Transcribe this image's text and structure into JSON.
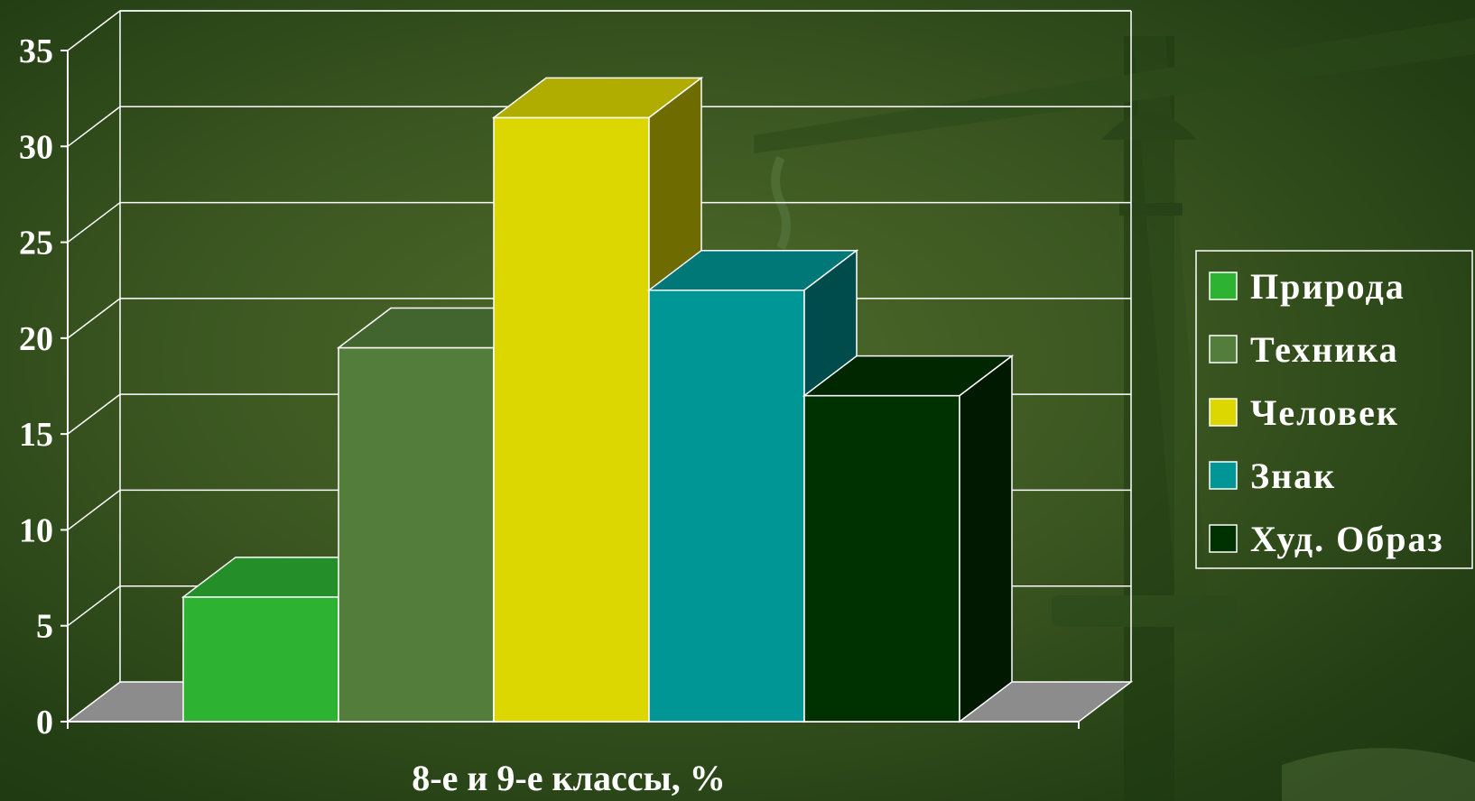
{
  "chart_data": {
    "type": "bar",
    "style": "3d",
    "categories": [
      "Природа",
      "Техника",
      "Человек",
      "Знак",
      "Худ. Образ"
    ],
    "values": [
      6.5,
      19.5,
      31.5,
      22.5,
      17
    ],
    "colors": {
      "Природа": "#2db232",
      "Техника": "#527d3a",
      "Человек": "#dcd700",
      "Знак": "#009696",
      "Худ. Образ": "#003100"
    },
    "xlabel": "8-е и 9-е классы, %",
    "ylabel": "",
    "ylim": [
      0,
      35
    ],
    "yticks": [
      0,
      5,
      10,
      15,
      20,
      25,
      30,
      35
    ],
    "grid": true,
    "legend": {
      "position": "right",
      "entries": [
        "Природа",
        "Техника",
        "Человек",
        "Знак",
        "Худ. Образ"
      ]
    }
  }
}
